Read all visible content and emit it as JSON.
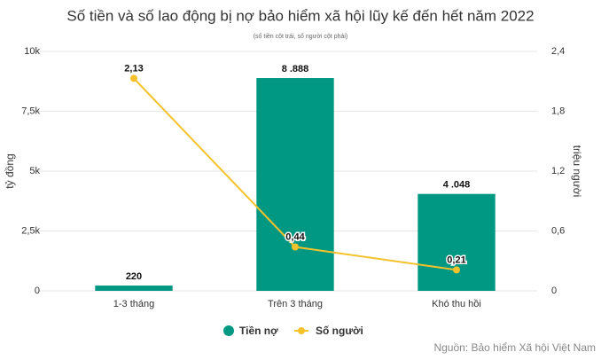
{
  "chart_data": {
    "type": "combo",
    "title": "Số tiền và số lao động bị nợ bảo hiểm xã hội lũy kế đến hết năm 2022",
    "subtitle": "(số tiền cột trái, số người cột phải)",
    "y_label": "tỷ đồng",
    "y2_label": "triệu người",
    "categories": [
      "1-3 tháng",
      "Trên 3 tháng",
      "Khó thu hồi"
    ],
    "series": [
      {
        "name": "Tiền nợ",
        "type": "bar",
        "color": "#009882",
        "values": [
          220,
          8888,
          4048
        ],
        "value_labels": [
          "220",
          "8 .888",
          "4 .048"
        ]
      },
      {
        "name": "Số người",
        "type": "line",
        "axis": "y2",
        "color": "#f5c22b",
        "values": [
          2.13,
          0.44,
          0.21
        ],
        "value_labels": [
          "2,13",
          "0,44",
          "0,21"
        ]
      }
    ],
    "ylim": [
      0,
      10000
    ],
    "yticks": [
      0,
      {
        "value": 2500,
        "label": "2,5k"
      },
      {
        "value": 5000,
        "label": "5k"
      },
      {
        "value": 7500,
        "label": "7,5k"
      },
      {
        "value": 10000,
        "label": "10k"
      }
    ],
    "y2lim": [
      0,
      2.4
    ],
    "y2ticks": [
      0,
      {
        "value": 0.6,
        "label": "0,6"
      },
      {
        "value": 1.2,
        "label": "1,2"
      },
      {
        "value": 1.8,
        "label": "1,8"
      },
      {
        "value": 2.4,
        "label": "2,4"
      }
    ],
    "grid": true,
    "source": "Nguồn: Bảo hiểm Xã hội Việt Nam"
  }
}
